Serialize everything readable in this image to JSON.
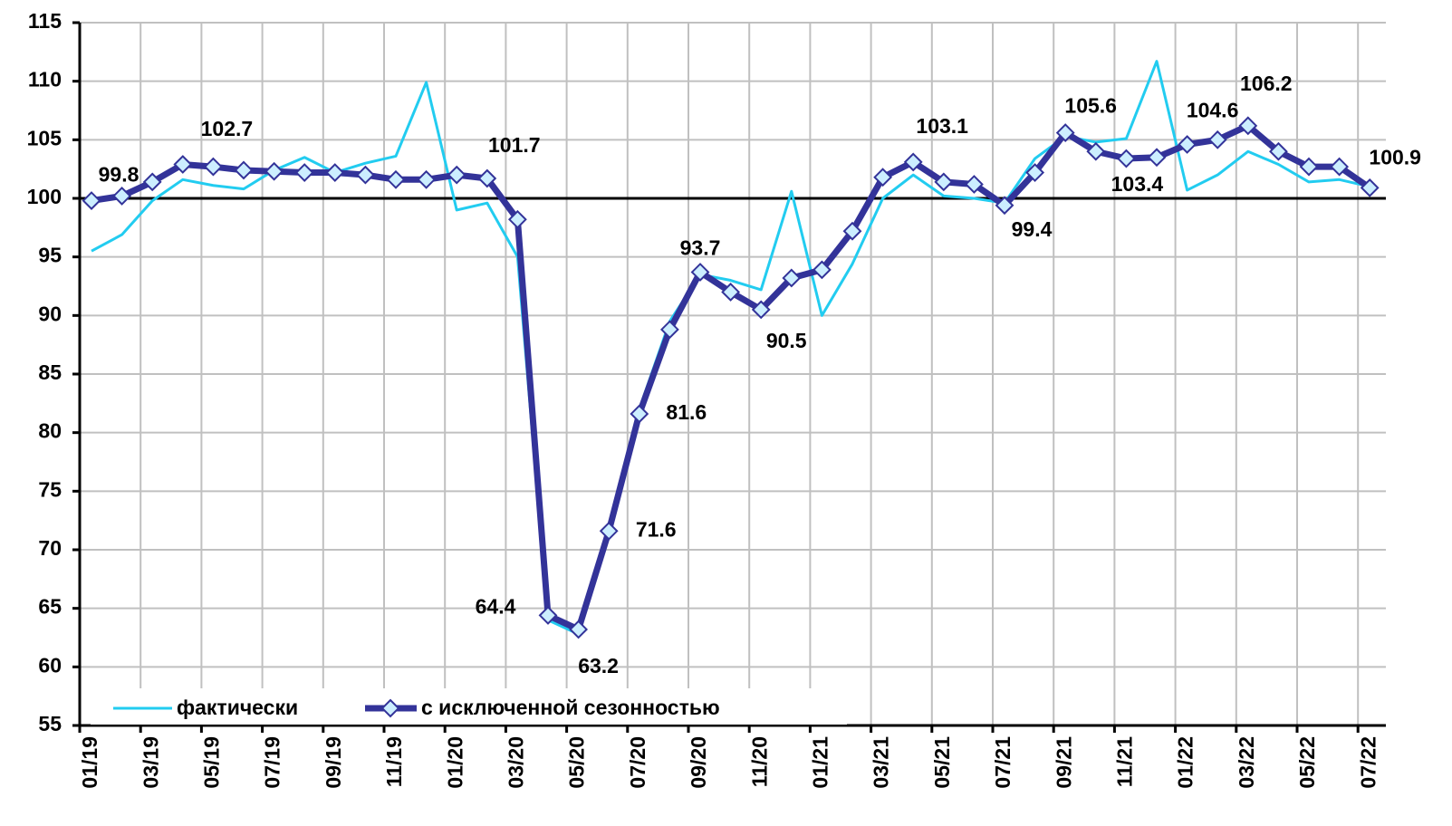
{
  "chart_data": {
    "type": "line",
    "categories": [
      "01/19",
      null,
      "03/19",
      null,
      "05/19",
      null,
      "07/19",
      null,
      "09/19",
      null,
      "11/19",
      null,
      "01/20",
      null,
      "03/20",
      null,
      "05/20",
      null,
      "07/20",
      null,
      "09/20",
      null,
      "11/20",
      null,
      "01/21",
      null,
      "03/21",
      null,
      "05/21",
      null,
      "07/21",
      null,
      "09/21",
      null,
      "11/21",
      null,
      "01/22",
      null,
      "03/22",
      null,
      "05/22",
      null,
      "07/22"
    ],
    "series": [
      {
        "name": "фактически",
        "color": "#22ccf0",
        "marker": false,
        "values": [
          95.5,
          96.9,
          99.8,
          101.6,
          101.1,
          100.8,
          102.4,
          103.5,
          102.2,
          103.0,
          103.6,
          109.9,
          99.0,
          99.6,
          95.0,
          64.0,
          62.8,
          71.6,
          82.0,
          89.5,
          93.5,
          93.0,
          92.2,
          100.6,
          90.0,
          94.4,
          100.0,
          102.0,
          100.2,
          100.0,
          99.6,
          103.4,
          105.3,
          104.8,
          105.1,
          111.7,
          100.7,
          102.0,
          104.0,
          102.9,
          101.4,
          101.6,
          101.0
        ]
      },
      {
        "name": "с исключенной сезонностью",
        "color": "#333399",
        "marker": true,
        "marker_fill": "#cceeff",
        "values": [
          99.8,
          100.2,
          101.4,
          102.9,
          102.7,
          102.4,
          102.3,
          102.2,
          102.2,
          102.0,
          101.6,
          101.6,
          102.0,
          101.7,
          98.2,
          64.4,
          63.2,
          71.6,
          81.6,
          88.8,
          93.7,
          92.0,
          90.5,
          93.2,
          93.9,
          97.2,
          101.8,
          103.1,
          101.4,
          101.2,
          99.4,
          102.2,
          105.6,
          104.0,
          103.4,
          103.5,
          104.6,
          105.0,
          106.2,
          104.0,
          102.7,
          102.7,
          100.9
        ],
        "value_labels": [
          "99.8",
          null,
          null,
          null,
          "102.7",
          null,
          null,
          null,
          null,
          null,
          null,
          null,
          null,
          "101.7",
          null,
          "64.4",
          "63.2",
          "71.6",
          "81.6",
          null,
          "93.7",
          null,
          "90.5",
          null,
          null,
          null,
          null,
          "103.1",
          null,
          null,
          "99.4",
          null,
          "105.6",
          null,
          "103.4",
          null,
          "104.6",
          null,
          "106.2",
          null,
          null,
          null,
          "100.9"
        ]
      }
    ],
    "ylim": [
      55,
      115
    ],
    "yticks": [
      55,
      60,
      65,
      70,
      75,
      80,
      85,
      90,
      95,
      100,
      105,
      110,
      115
    ],
    "xaxis_crosses": 100,
    "grid": true,
    "legend": "bottom-left"
  }
}
